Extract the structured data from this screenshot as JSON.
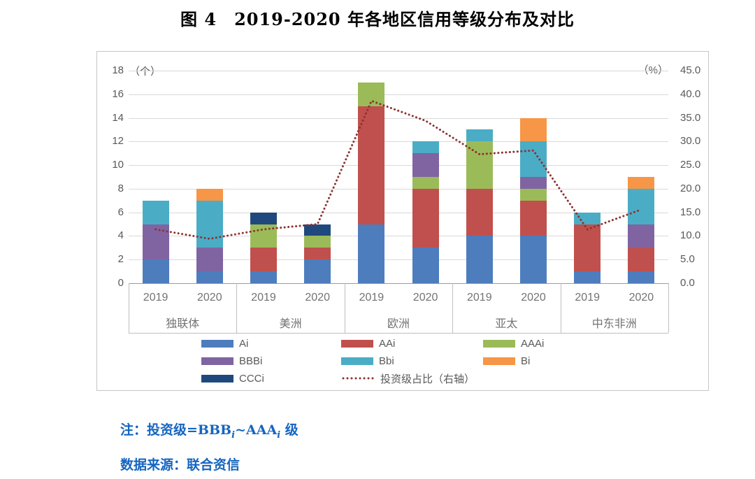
{
  "page_title": "图 4　2019-2020 年各地区信用等级分布及对比",
  "chart_data": {
    "type": "bar",
    "subtype": "stacked-bars-with-dotted-line",
    "title": "图 4　2019-2020 年各地区信用等级分布及对比",
    "categories": {
      "groups": [
        "独联体",
        "美洲",
        "欧洲",
        "亚太",
        "中东非洲"
      ],
      "years": [
        "2019",
        "2020"
      ]
    },
    "series": [
      {
        "name": "Ai",
        "color": "#4e7dbd",
        "values": [
          2,
          1,
          1,
          2,
          5,
          3,
          4,
          4,
          1,
          1
        ]
      },
      {
        "name": "AAi",
        "color": "#c0504d",
        "values": [
          0,
          0,
          2,
          1,
          10,
          5,
          4,
          3,
          4,
          2
        ]
      },
      {
        "name": "AAAi",
        "color": "#9bbb59",
        "values": [
          0,
          0,
          2,
          1,
          2,
          1,
          4,
          1,
          0,
          0
        ]
      },
      {
        "name": "BBBi",
        "color": "#8064a2",
        "values": [
          3,
          2,
          0,
          0,
          0,
          2,
          0,
          1,
          0,
          2
        ]
      },
      {
        "name": "Bbi",
        "color": "#4bacc6",
        "values": [
          2,
          4,
          0,
          0,
          0,
          1,
          1,
          3,
          1,
          3
        ]
      },
      {
        "name": "Bi",
        "color": "#f79646",
        "values": [
          0,
          1,
          0,
          0,
          0,
          0,
          0,
          2,
          0,
          1
        ]
      },
      {
        "name": "CCCi",
        "color": "#1f497d",
        "values": [
          0,
          0,
          1,
          1,
          0,
          0,
          0,
          0,
          0,
          0
        ]
      }
    ],
    "bar_totals": [
      7,
      8,
      6,
      5,
      17,
      12,
      13,
      14,
      6,
      9
    ],
    "line_series": {
      "name": "投资级占比（右轴）",
      "color": "#8d3331",
      "style": "dotted",
      "axis": "right",
      "values": [
        11.4,
        9.4,
        11.4,
        12.5,
        38.6,
        34.4,
        27.3,
        28.1,
        11.4,
        15.6
      ]
    },
    "left_axis": {
      "min": 0,
      "max": 18,
      "step": 2,
      "unit": "（个）",
      "decimals": 0
    },
    "right_axis": {
      "min": 0,
      "max": 45,
      "step": 5,
      "unit": "（%）",
      "decimals": 1
    },
    "legend": {
      "items": [
        {
          "label": "Ai",
          "color": "#4e7dbd",
          "type": "box",
          "col": 0,
          "row": 0
        },
        {
          "label": "AAi",
          "color": "#c0504d",
          "type": "box",
          "col": 1,
          "row": 0
        },
        {
          "label": "AAAi",
          "color": "#9bbb59",
          "type": "box",
          "col": 2,
          "row": 0
        },
        {
          "label": "BBBi",
          "color": "#8064a2",
          "type": "box",
          "col": 0,
          "row": 1
        },
        {
          "label": "Bbi",
          "color": "#4bacc6",
          "type": "box",
          "col": 1,
          "row": 1
        },
        {
          "label": "Bi",
          "color": "#f79646",
          "type": "box",
          "col": 2,
          "row": 1
        },
        {
          "label": "CCCi",
          "color": "#1f497d",
          "type": "box",
          "col": 0,
          "row": 2
        },
        {
          "label": "投资级占比（右轴）",
          "color": "#8d3331",
          "type": "dots",
          "col": 1,
          "row": 2
        }
      ]
    },
    "grid": true,
    "legend_position": "bottom"
  },
  "footnote": {
    "p1": "注：投资级=BBB",
    "sub1": "i",
    "p2": "~AAA",
    "sub2": "i",
    "p3": " 级"
  },
  "source": "数据来源：联合资信",
  "colors": {
    "note_text": "#1565c0",
    "grid": "#d9d9d9",
    "axis_line": "#9a9a9a",
    "tick_text": "#595959",
    "category_text": "#737373",
    "panel_border": "#c6c6c6",
    "trend_line": "#8d3331"
  }
}
